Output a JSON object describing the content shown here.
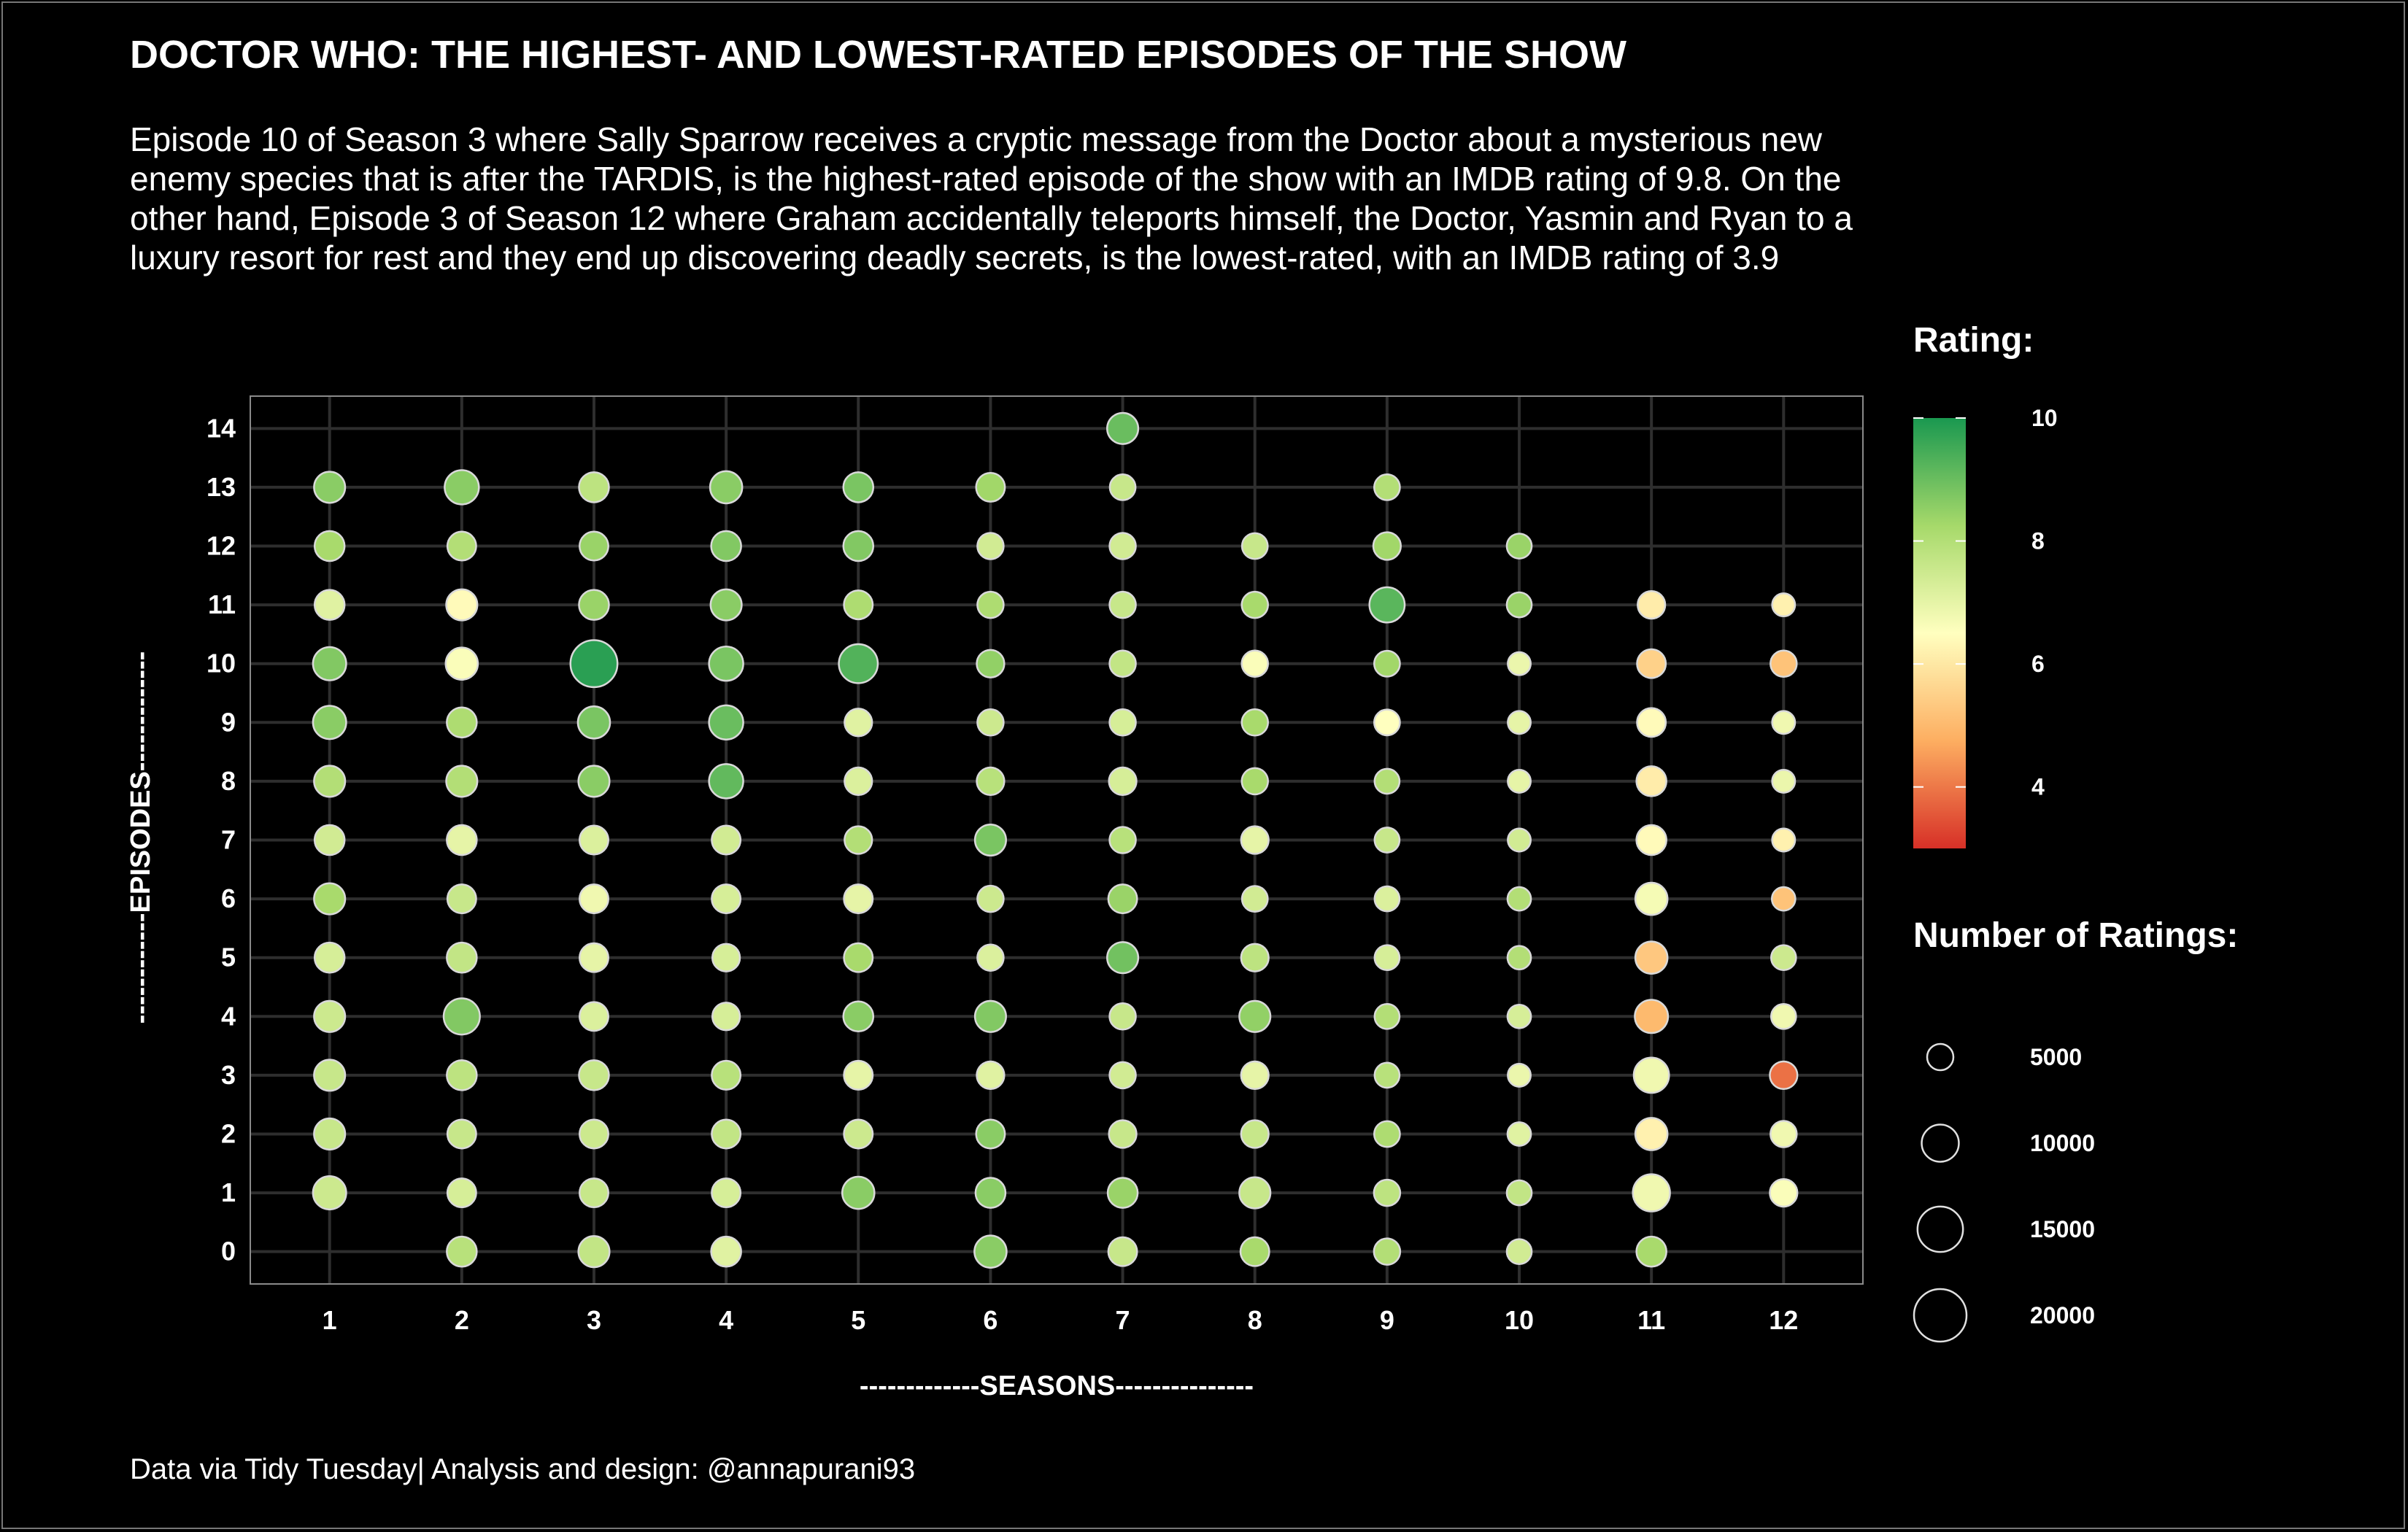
{
  "chart_data": {
    "type": "scatter",
    "title": "DOCTOR WHO: THE HIGHEST- AND LOWEST-RATED EPISODES OF THE SHOW",
    "subtitle": "Episode 10 of Season 3 where Sally Sparrow receives a cryptic message from the Doctor about a mysterious new enemy species that is after the TARDIS, is the highest-rated episode of the show with an IMDB rating of 9.8. On the other hand, Episode 3 of Season 12 where Graham accidentally teleports himself, the Doctor, Yasmin and Ryan to a luxury resort for rest and they end up discovering deadly secrets, is the lowest-rated, with an IMDB rating of 3.9",
    "caption": "Data via Tidy Tuesday| Analysis and design: @annapurani93",
    "xlabel": "-------------SEASONS---------------",
    "ylabel": "------------EPISODES-------------",
    "x_ticks": [
      "1",
      "2",
      "3",
      "4",
      "5",
      "6",
      "7",
      "8",
      "9",
      "10",
      "11",
      "12"
    ],
    "y_ticks": [
      "0",
      "1",
      "2",
      "3",
      "4",
      "5",
      "6",
      "7",
      "8",
      "9",
      "10",
      "11",
      "12",
      "13",
      "14"
    ],
    "xlim": [
      0.4,
      12.6
    ],
    "ylim": [
      -0.55,
      14.55
    ],
    "grid": true,
    "color_legend": {
      "title": "Rating:",
      "labels": [
        "10",
        "8",
        "6",
        "4"
      ],
      "values": [
        10,
        8,
        6,
        4
      ],
      "range": [
        3,
        10
      ],
      "colors": {
        "low": "#d73027",
        "mid_low": "#fdae61",
        "mid": "#ffffbf",
        "mid_high": "#a6d96a",
        "high": "#1a9850"
      }
    },
    "size_legend": {
      "title": "Number of Ratings:",
      "labels": [
        "5000",
        "10000",
        "15000",
        "20000"
      ],
      "values": [
        5000,
        10000,
        15000,
        20000
      ]
    },
    "points": [
      {
        "season": 1,
        "episode": 1,
        "rating": 7.5,
        "votes": 8000
      },
      {
        "season": 1,
        "episode": 2,
        "rating": 7.6,
        "votes": 7000
      },
      {
        "season": 1,
        "episode": 3,
        "rating": 7.6,
        "votes": 7000
      },
      {
        "season": 1,
        "episode": 4,
        "rating": 7.5,
        "votes": 7000
      },
      {
        "season": 1,
        "episode": 5,
        "rating": 7.3,
        "votes": 6500
      },
      {
        "season": 1,
        "episode": 6,
        "rating": 8.2,
        "votes": 7000
      },
      {
        "season": 1,
        "episode": 7,
        "rating": 7.4,
        "votes": 6500
      },
      {
        "season": 1,
        "episode": 8,
        "rating": 8.0,
        "votes": 7000
      },
      {
        "season": 1,
        "episode": 9,
        "rating": 8.6,
        "votes": 8000
      },
      {
        "season": 1,
        "episode": 10,
        "rating": 8.7,
        "votes": 8000
      },
      {
        "season": 1,
        "episode": 11,
        "rating": 7.1,
        "votes": 6500
      },
      {
        "season": 1,
        "episode": 12,
        "rating": 8.2,
        "votes": 6500
      },
      {
        "season": 1,
        "episode": 13,
        "rating": 8.6,
        "votes": 7000
      },
      {
        "season": 2,
        "episode": 0,
        "rating": 7.9,
        "votes": 6500
      },
      {
        "season": 2,
        "episode": 1,
        "rating": 7.3,
        "votes": 6000
      },
      {
        "season": 2,
        "episode": 2,
        "rating": 7.6,
        "votes": 6000
      },
      {
        "season": 2,
        "episode": 3,
        "rating": 7.8,
        "votes": 6500
      },
      {
        "season": 2,
        "episode": 4,
        "rating": 8.7,
        "votes": 9500
      },
      {
        "season": 2,
        "episode": 5,
        "rating": 7.7,
        "votes": 6500
      },
      {
        "season": 2,
        "episode": 6,
        "rating": 7.6,
        "votes": 6000
      },
      {
        "season": 2,
        "episode": 7,
        "rating": 7.0,
        "votes": 6500
      },
      {
        "season": 2,
        "episode": 8,
        "rating": 8.0,
        "votes": 7000
      },
      {
        "season": 2,
        "episode": 9,
        "rating": 8.1,
        "votes": 6500
      },
      {
        "season": 2,
        "episode": 10,
        "rating": 6.6,
        "votes": 7500
      },
      {
        "season": 2,
        "episode": 11,
        "rating": 6.4,
        "votes": 7000
      },
      {
        "season": 2,
        "episode": 12,
        "rating": 8.0,
        "votes": 6000
      },
      {
        "season": 2,
        "episode": 13,
        "rating": 8.6,
        "votes": 8500
      },
      {
        "season": 3,
        "episode": 0,
        "rating": 7.7,
        "votes": 7000
      },
      {
        "season": 3,
        "episode": 1,
        "rating": 7.6,
        "votes": 6000
      },
      {
        "season": 3,
        "episode": 2,
        "rating": 7.5,
        "votes": 6000
      },
      {
        "season": 3,
        "episode": 3,
        "rating": 7.6,
        "votes": 6500
      },
      {
        "season": 3,
        "episode": 4,
        "rating": 7.2,
        "votes": 6000
      },
      {
        "season": 3,
        "episode": 5,
        "rating": 7.0,
        "votes": 6000
      },
      {
        "season": 3,
        "episode": 6,
        "rating": 6.8,
        "votes": 6000
      },
      {
        "season": 3,
        "episode": 7,
        "rating": 7.2,
        "votes": 6000
      },
      {
        "season": 3,
        "episode": 8,
        "rating": 8.6,
        "votes": 7000
      },
      {
        "season": 3,
        "episode": 9,
        "rating": 8.8,
        "votes": 7500
      },
      {
        "season": 3,
        "episode": 10,
        "rating": 9.8,
        "votes": 16000
      },
      {
        "season": 3,
        "episode": 11,
        "rating": 8.4,
        "votes": 6500
      },
      {
        "season": 3,
        "episode": 12,
        "rating": 8.4,
        "votes": 6000
      },
      {
        "season": 3,
        "episode": 13,
        "rating": 7.8,
        "votes": 6500
      },
      {
        "season": 4,
        "episode": 0,
        "rating": 7.1,
        "votes": 6500
      },
      {
        "season": 4,
        "episode": 1,
        "rating": 7.3,
        "votes": 6000
      },
      {
        "season": 4,
        "episode": 2,
        "rating": 7.7,
        "votes": 6000
      },
      {
        "season": 4,
        "episode": 3,
        "rating": 7.9,
        "votes": 6000
      },
      {
        "season": 4,
        "episode": 4,
        "rating": 7.3,
        "votes": 5500
      },
      {
        "season": 4,
        "episode": 5,
        "rating": 7.3,
        "votes": 5500
      },
      {
        "season": 4,
        "episode": 6,
        "rating": 7.3,
        "votes": 6000
      },
      {
        "season": 4,
        "episode": 7,
        "rating": 7.4,
        "votes": 6000
      },
      {
        "season": 4,
        "episode": 8,
        "rating": 9.1,
        "votes": 8500
      },
      {
        "season": 4,
        "episode": 9,
        "rating": 9.0,
        "votes": 8500
      },
      {
        "season": 4,
        "episode": 10,
        "rating": 8.8,
        "votes": 8500
      },
      {
        "season": 4,
        "episode": 11,
        "rating": 8.6,
        "votes": 7000
      },
      {
        "season": 4,
        "episode": 12,
        "rating": 8.7,
        "votes": 6500
      },
      {
        "season": 4,
        "episode": 13,
        "rating": 8.6,
        "votes": 7500
      },
      {
        "season": 5,
        "episode": 1,
        "rating": 8.6,
        "votes": 7500
      },
      {
        "season": 5,
        "episode": 2,
        "rating": 7.5,
        "votes": 6000
      },
      {
        "season": 5,
        "episode": 3,
        "rating": 7.0,
        "votes": 6000
      },
      {
        "season": 5,
        "episode": 4,
        "rating": 8.6,
        "votes": 6500
      },
      {
        "season": 5,
        "episode": 5,
        "rating": 8.2,
        "votes": 6000
      },
      {
        "season": 5,
        "episode": 6,
        "rating": 7.0,
        "votes": 6000
      },
      {
        "season": 5,
        "episode": 7,
        "rating": 8.0,
        "votes": 5500
      },
      {
        "season": 5,
        "episode": 8,
        "rating": 7.2,
        "votes": 5500
      },
      {
        "season": 5,
        "episode": 9,
        "rating": 7.1,
        "votes": 5500
      },
      {
        "season": 5,
        "episode": 10,
        "rating": 9.3,
        "votes": 11000
      },
      {
        "season": 5,
        "episode": 11,
        "rating": 8.1,
        "votes": 6000
      },
      {
        "season": 5,
        "episode": 12,
        "rating": 8.7,
        "votes": 6500
      },
      {
        "season": 5,
        "episode": 13,
        "rating": 8.8,
        "votes": 6500
      },
      {
        "season": 6,
        "episode": 0,
        "rating": 8.6,
        "votes": 7500
      },
      {
        "season": 6,
        "episode": 1,
        "rating": 8.6,
        "votes": 6500
      },
      {
        "season": 6,
        "episode": 2,
        "rating": 8.6,
        "votes": 6000
      },
      {
        "season": 6,
        "episode": 3,
        "rating": 7.1,
        "votes": 5500
      },
      {
        "season": 6,
        "episode": 4,
        "rating": 8.7,
        "votes": 7000
      },
      {
        "season": 6,
        "episode": 5,
        "rating": 7.2,
        "votes": 5000
      },
      {
        "season": 6,
        "episode": 6,
        "rating": 7.5,
        "votes": 5000
      },
      {
        "season": 6,
        "episode": 7,
        "rating": 8.8,
        "votes": 7000
      },
      {
        "season": 6,
        "episode": 8,
        "rating": 7.9,
        "votes": 5500
      },
      {
        "season": 6,
        "episode": 9,
        "rating": 7.5,
        "votes": 5000
      },
      {
        "season": 6,
        "episode": 10,
        "rating": 8.5,
        "votes": 5500
      },
      {
        "season": 6,
        "episode": 11,
        "rating": 8.1,
        "votes": 5000
      },
      {
        "season": 6,
        "episode": 12,
        "rating": 7.4,
        "votes": 5000
      },
      {
        "season": 6,
        "episode": 13,
        "rating": 8.3,
        "votes": 6000
      },
      {
        "season": 7,
        "episode": 0,
        "rating": 7.6,
        "votes": 6000
      },
      {
        "season": 7,
        "episode": 1,
        "rating": 8.4,
        "votes": 6500
      },
      {
        "season": 7,
        "episode": 2,
        "rating": 7.6,
        "votes": 5500
      },
      {
        "season": 7,
        "episode": 3,
        "rating": 7.4,
        "votes": 5000
      },
      {
        "season": 7,
        "episode": 4,
        "rating": 7.6,
        "votes": 5000
      },
      {
        "season": 7,
        "episode": 5,
        "rating": 8.9,
        "votes": 7000
      },
      {
        "season": 7,
        "episode": 6,
        "rating": 8.4,
        "votes": 6000
      },
      {
        "season": 7,
        "episode": 7,
        "rating": 7.9,
        "votes": 5000
      },
      {
        "season": 7,
        "episode": 8,
        "rating": 7.3,
        "votes": 5500
      },
      {
        "season": 7,
        "episode": 9,
        "rating": 7.3,
        "votes": 5000
      },
      {
        "season": 7,
        "episode": 10,
        "rating": 7.7,
        "votes": 5000
      },
      {
        "season": 7,
        "episode": 11,
        "rating": 7.6,
        "votes": 5000
      },
      {
        "season": 7,
        "episode": 12,
        "rating": 7.4,
        "votes": 5000
      },
      {
        "season": 7,
        "episode": 13,
        "rating": 7.6,
        "votes": 4800
      },
      {
        "season": 7,
        "episode": 14,
        "rating": 9.0,
        "votes": 7000
      },
      {
        "season": 8,
        "episode": 0,
        "rating": 8.2,
        "votes": 6000
      },
      {
        "season": 8,
        "episode": 1,
        "rating": 7.6,
        "votes": 7000
      },
      {
        "season": 8,
        "episode": 2,
        "rating": 7.6,
        "votes": 5500
      },
      {
        "season": 8,
        "episode": 3,
        "rating": 7.0,
        "votes": 5500
      },
      {
        "season": 8,
        "episode": 4,
        "rating": 8.5,
        "votes": 7000
      },
      {
        "season": 8,
        "episode": 5,
        "rating": 7.8,
        "votes": 5500
      },
      {
        "season": 8,
        "episode": 6,
        "rating": 7.4,
        "votes": 4800
      },
      {
        "season": 8,
        "episode": 7,
        "rating": 7.0,
        "votes": 5500
      },
      {
        "season": 8,
        "episode": 8,
        "rating": 8.2,
        "votes": 5000
      },
      {
        "season": 8,
        "episode": 9,
        "rating": 8.2,
        "votes": 5000
      },
      {
        "season": 8,
        "episode": 10,
        "rating": 6.6,
        "votes": 5000
      },
      {
        "season": 8,
        "episode": 11,
        "rating": 8.2,
        "votes": 5000
      },
      {
        "season": 8,
        "episode": 12,
        "rating": 7.6,
        "votes": 4800
      },
      {
        "season": 9,
        "episode": 0,
        "rating": 8.0,
        "votes": 5000
      },
      {
        "season": 9,
        "episode": 1,
        "rating": 7.8,
        "votes": 5000
      },
      {
        "season": 9,
        "episode": 2,
        "rating": 8.1,
        "votes": 4800
      },
      {
        "season": 9,
        "episode": 3,
        "rating": 7.9,
        "votes": 4500
      },
      {
        "season": 9,
        "episode": 4,
        "rating": 8.0,
        "votes": 4500
      },
      {
        "season": 9,
        "episode": 5,
        "rating": 7.3,
        "votes": 4500
      },
      {
        "season": 9,
        "episode": 6,
        "rating": 7.2,
        "votes": 4500
      },
      {
        "season": 9,
        "episode": 7,
        "rating": 7.6,
        "votes": 4500
      },
      {
        "season": 9,
        "episode": 8,
        "rating": 8.0,
        "votes": 4500
      },
      {
        "season": 9,
        "episode": 9,
        "rating": 6.5,
        "votes": 4800
      },
      {
        "season": 9,
        "episode": 10,
        "rating": 8.3,
        "votes": 4800
      },
      {
        "season": 9,
        "episode": 11,
        "rating": 9.2,
        "votes": 9000
      },
      {
        "season": 9,
        "episode": 12,
        "rating": 8.3,
        "votes": 5500
      },
      {
        "season": 9,
        "episode": 13,
        "rating": 8.0,
        "votes": 4800
      },
      {
        "season": 10,
        "episode": 0,
        "rating": 7.4,
        "votes": 4500
      },
      {
        "season": 10,
        "episode": 1,
        "rating": 7.7,
        "votes": 4500
      },
      {
        "season": 10,
        "episode": 2,
        "rating": 7.1,
        "votes": 4000
      },
      {
        "season": 10,
        "episode": 3,
        "rating": 6.9,
        "votes": 3800
      },
      {
        "season": 10,
        "episode": 4,
        "rating": 7.3,
        "votes": 4000
      },
      {
        "season": 10,
        "episode": 5,
        "rating": 8.0,
        "votes": 4000
      },
      {
        "season": 10,
        "episode": 6,
        "rating": 8.0,
        "votes": 4000
      },
      {
        "season": 10,
        "episode": 7,
        "rating": 7.4,
        "votes": 3800
      },
      {
        "season": 10,
        "episode": 8,
        "rating": 7.0,
        "votes": 3800
      },
      {
        "season": 10,
        "episode": 9,
        "rating": 7.0,
        "votes": 3800
      },
      {
        "season": 10,
        "episode": 10,
        "rating": 6.9,
        "votes": 3800
      },
      {
        "season": 10,
        "episode": 11,
        "rating": 8.4,
        "votes": 4500
      },
      {
        "season": 10,
        "episode": 12,
        "rating": 8.4,
        "votes": 4500
      },
      {
        "season": 11,
        "episode": 0,
        "rating": 8.2,
        "votes": 6500
      },
      {
        "season": 11,
        "episode": 1,
        "rating": 6.8,
        "votes": 10000
      },
      {
        "season": 11,
        "episode": 2,
        "rating": 6.2,
        "votes": 7500
      },
      {
        "season": 11,
        "episode": 3,
        "rating": 6.8,
        "votes": 9000
      },
      {
        "season": 11,
        "episode": 4,
        "rating": 5.0,
        "votes": 8000
      },
      {
        "season": 11,
        "episode": 5,
        "rating": 5.3,
        "votes": 7500
      },
      {
        "season": 11,
        "episode": 6,
        "rating": 6.7,
        "votes": 7500
      },
      {
        "season": 11,
        "episode": 7,
        "rating": 6.4,
        "votes": 6500
      },
      {
        "season": 11,
        "episode": 8,
        "rating": 6.1,
        "votes": 6500
      },
      {
        "season": 11,
        "episode": 9,
        "rating": 6.4,
        "votes": 6000
      },
      {
        "season": 11,
        "episode": 10,
        "rating": 5.5,
        "votes": 6000
      },
      {
        "season": 11,
        "episode": 11,
        "rating": 6.1,
        "votes": 5500
      },
      {
        "season": 12,
        "episode": 1,
        "rating": 6.6,
        "votes": 5500
      },
      {
        "season": 12,
        "episode": 2,
        "rating": 6.8,
        "votes": 5000
      },
      {
        "season": 12,
        "episode": 3,
        "rating": 3.9,
        "votes": 5500
      },
      {
        "season": 12,
        "episode": 4,
        "rating": 6.8,
        "votes": 4500
      },
      {
        "season": 12,
        "episode": 5,
        "rating": 7.5,
        "votes": 4500
      },
      {
        "season": 12,
        "episode": 6,
        "rating": 5.2,
        "votes": 4000
      },
      {
        "season": 12,
        "episode": 7,
        "rating": 6.2,
        "votes": 3800
      },
      {
        "season": 12,
        "episode": 8,
        "rating": 6.9,
        "votes": 3800
      },
      {
        "season": 12,
        "episode": 9,
        "rating": 6.8,
        "votes": 3800
      },
      {
        "season": 12,
        "episode": 10,
        "rating": 5.2,
        "votes": 5000
      },
      {
        "season": 12,
        "episode": 11,
        "rating": 6.2,
        "votes": 3800
      }
    ]
  }
}
